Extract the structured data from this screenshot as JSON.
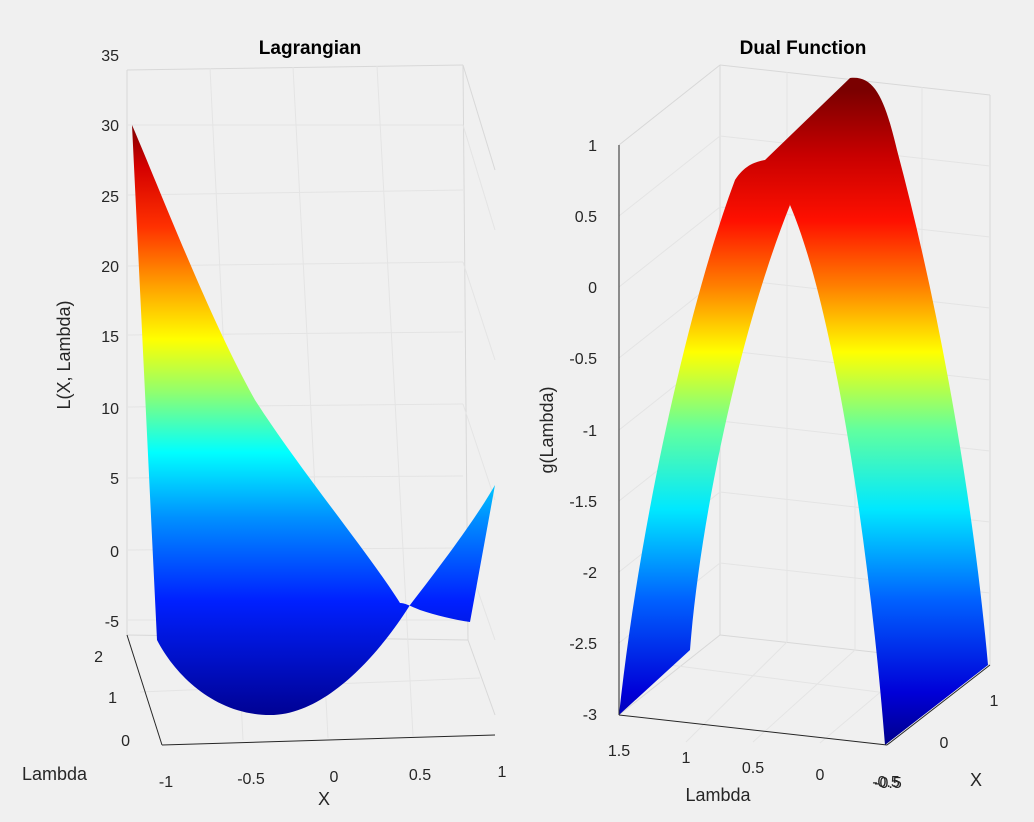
{
  "chart_data": [
    {
      "type": "surface",
      "title": "Lagrangian",
      "xlabel": "X",
      "ylabel": "Lambda",
      "zlabel": "L(X, Lambda)",
      "x_ticks": [
        "-1",
        "-0.5",
        "0",
        "0.5",
        "1"
      ],
      "y_ticks": [
        "0",
        "1",
        "2"
      ],
      "z_ticks": [
        "-5",
        "0",
        "5",
        "10",
        "15",
        "20",
        "25",
        "30",
        "35"
      ],
      "xlim": [
        -1,
        1
      ],
      "ylim": [
        0,
        2
      ],
      "zlim": [
        -5,
        35
      ],
      "colormap": "jet",
      "grid": true,
      "sample_surface": [
        {
          "x": -1,
          "lambda": 2,
          "L": 30
        },
        {
          "x": -0.5,
          "lambda": 0,
          "L": -7
        },
        {
          "x": 0.5,
          "lambda": 2,
          "L": -2.5
        },
        {
          "x": 1,
          "lambda": 0,
          "L": 4.5
        }
      ]
    },
    {
      "type": "surface",
      "title": "Dual Function",
      "xlabel": "X",
      "ylabel": "Lambda",
      "zlabel": "g(Lambda)",
      "x_ticks": [
        "-0.5",
        "0",
        "1"
      ],
      "y_ticks": [
        "1.5",
        "1",
        "0.5",
        "0",
        "-0.5"
      ],
      "z_ticks": [
        "-3",
        "-2.5",
        "-2",
        "-1.5",
        "-1",
        "-0.5",
        "0",
        "0.5",
        "1"
      ],
      "xlim": [
        -1,
        1
      ],
      "ylim": [
        -0.5,
        1.5
      ],
      "zlim": [
        -3,
        1
      ],
      "colormap": "jet",
      "grid": true,
      "curve": {
        "lambda": [
          -0.5,
          0,
          0.5,
          1,
          1.5
        ],
        "g": [
          -3,
          -1,
          1,
          -1,
          -3
        ]
      }
    }
  ]
}
